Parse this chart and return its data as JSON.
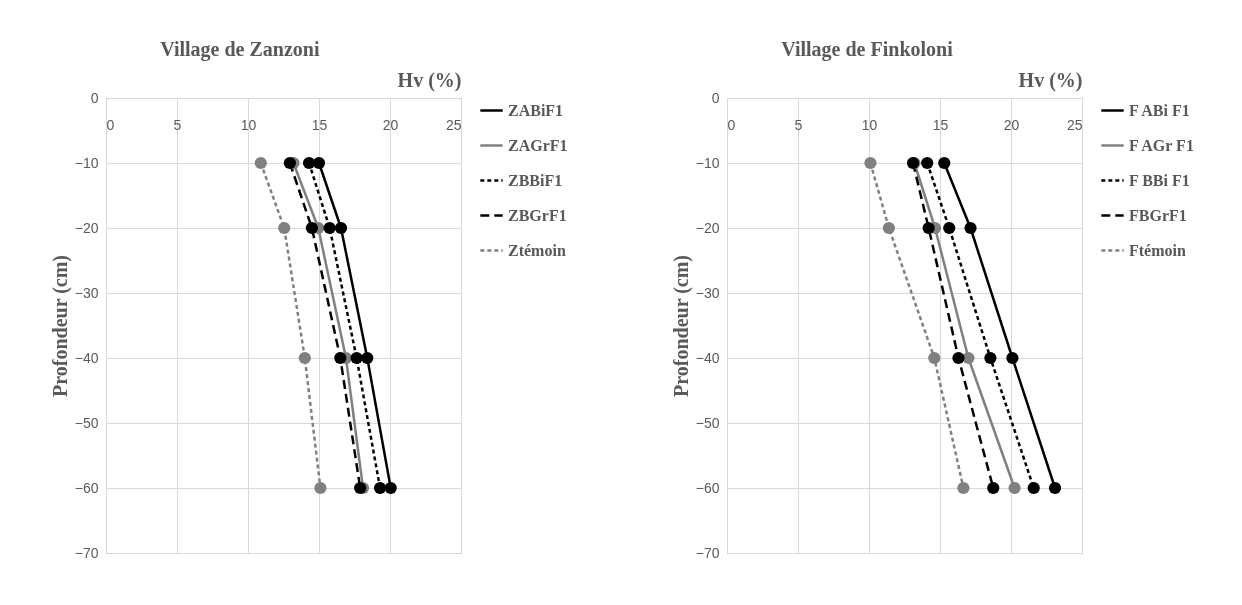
{
  "chart_data": [
    {
      "type": "line",
      "title": "Village de Zanzoni",
      "xlabel": "Hv (%)",
      "ylabel": "Profondeur (cm)",
      "xlim": [
        0,
        25
      ],
      "xticks": [
        0,
        5,
        10,
        15,
        20,
        25
      ],
      "ylim": [
        -70,
        0
      ],
      "yticks": [
        -70,
        -60,
        -50,
        -40,
        -30,
        -20,
        -10,
        0
      ],
      "grid": true,
      "legend": "right",
      "marker": "circle",
      "series": [
        {
          "name": "ZABiF1",
          "color": "#000000",
          "line_style": "solid",
          "x": [
            15.0,
            16.55,
            18.4,
            20.05
          ],
          "values": [
            -10,
            -20,
            -40,
            -60
          ]
        },
        {
          "name": "ZAGrF1",
          "color": "#808080",
          "line_style": "solid",
          "x": [
            13.2,
            14.95,
            16.9,
            18.1
          ],
          "values": [
            -10,
            -20,
            -40,
            -60
          ]
        },
        {
          "name": "ZBBiF1",
          "color": "#000000",
          "line_style": "dotted",
          "x": [
            14.3,
            15.75,
            17.65,
            19.3
          ],
          "values": [
            -10,
            -20,
            -40,
            -60
          ]
        },
        {
          "name": "ZBGrF1",
          "color": "#000000",
          "line_style": "dashed",
          "x": [
            12.95,
            14.5,
            16.5,
            17.9
          ],
          "values": [
            -10,
            -20,
            -40,
            -60
          ]
        },
        {
          "name": "Ztémoin",
          "color": "#808080",
          "line_style": "dotted",
          "x": [
            10.9,
            12.55,
            14.0,
            15.1
          ],
          "values": [
            -10,
            -20,
            -40,
            -60
          ]
        }
      ]
    },
    {
      "type": "line",
      "title": "Village de Finkoloni",
      "xlabel": "Hv (%)",
      "ylabel": "Profondeur (cm)",
      "xlim": [
        0,
        25
      ],
      "xticks": [
        0,
        5,
        10,
        15,
        20,
        25
      ],
      "ylim": [
        -70,
        0
      ],
      "yticks": [
        -70,
        -60,
        -50,
        -40,
        -30,
        -20,
        -10,
        0
      ],
      "grid": true,
      "legend": "right",
      "marker": "circle",
      "series": [
        {
          "name": "F ABi F1",
          "color": "#000000",
          "line_style": "solid",
          "x": [
            15.3,
            17.15,
            20.1,
            23.1
          ],
          "values": [
            -10,
            -20,
            -40,
            -60
          ]
        },
        {
          "name": "F AGr F1",
          "color": "#808080",
          "line_style": "solid",
          "x": [
            13.2,
            14.65,
            17.0,
            20.25
          ],
          "values": [
            -10,
            -20,
            -40,
            -60
          ]
        },
        {
          "name": "F BBi F1",
          "color": "#000000",
          "line_style": "dotted",
          "x": [
            14.1,
            15.65,
            18.55,
            21.6
          ],
          "values": [
            -10,
            -20,
            -40,
            -60
          ]
        },
        {
          "name": "FBGrF1",
          "color": "#000000",
          "line_style": "dashed",
          "x": [
            13.1,
            14.2,
            16.3,
            18.75
          ],
          "values": [
            -10,
            -20,
            -40,
            -60
          ]
        },
        {
          "name": "Ftémoin",
          "color": "#808080",
          "line_style": "dotted",
          "x": [
            10.1,
            11.4,
            14.6,
            16.65
          ],
          "values": [
            -10,
            -20,
            -40,
            -60
          ]
        }
      ]
    }
  ]
}
